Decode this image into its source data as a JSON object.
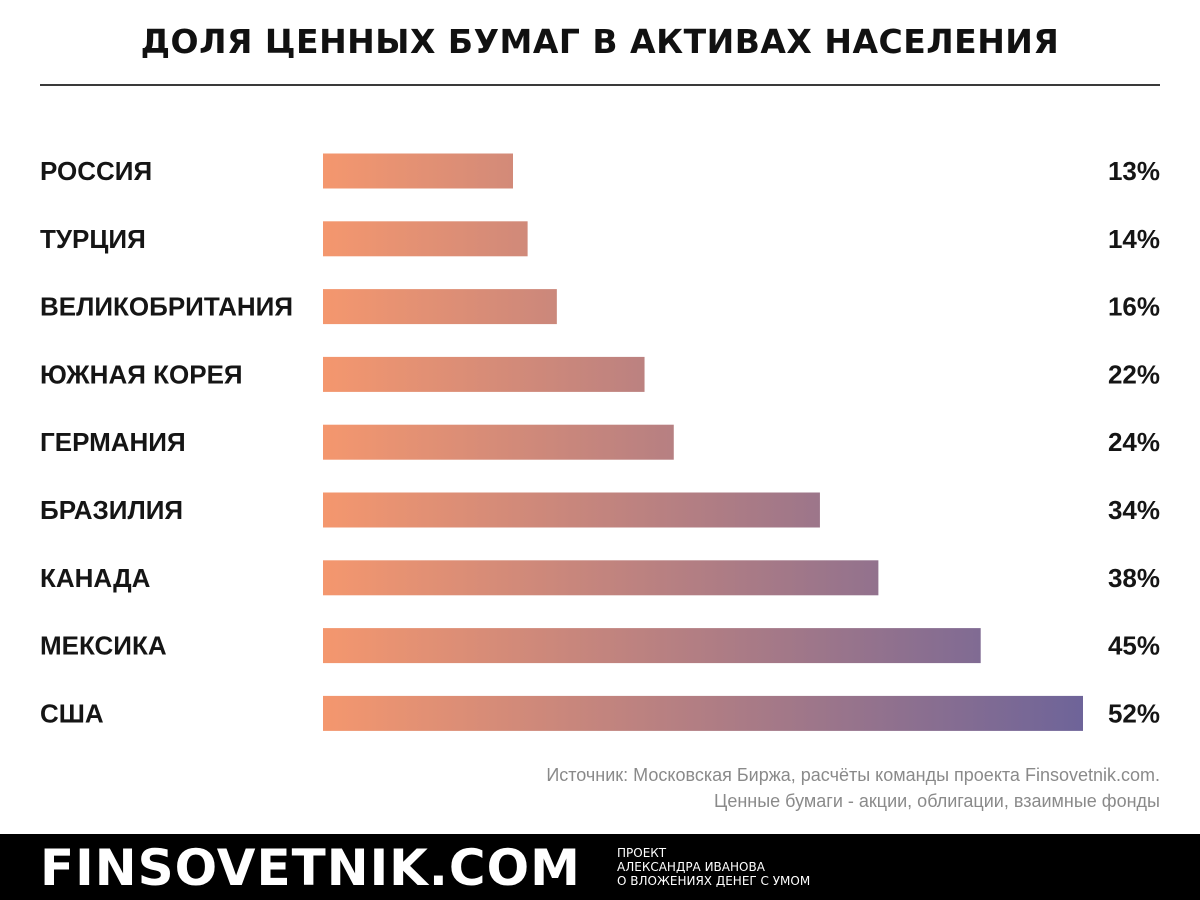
{
  "title": "ДОЛЯ ЦЕННЫХ БУМАГ В АКТИВАХ НАСЕЛЕНИЯ",
  "colors": {
    "bar_start": "#F4976E",
    "bar_end": "#6E6499",
    "text": "#151515",
    "source_text": "#8A8A8A",
    "footer_bg": "#000000"
  },
  "chart_data": {
    "type": "bar",
    "orientation": "horizontal",
    "title": "ДОЛЯ ЦЕННЫХ БУМАГ В АКТИВАХ НАСЕЛЕНИЯ",
    "categories": [
      "РОССИЯ",
      "ТУРЦИЯ",
      "ВЕЛИКОБРИТАНИЯ",
      "ЮЖНАЯ КОРЕЯ",
      "ГЕРМАНИЯ",
      "БРАЗИЛИЯ",
      "КАНАДА",
      "МЕКСИКА",
      "США"
    ],
    "values": [
      13,
      14,
      16,
      22,
      24,
      34,
      38,
      45,
      52
    ],
    "value_labels": [
      "13%",
      "14%",
      "16%",
      "22%",
      "24%",
      "34%",
      "38%",
      "45%",
      "52%"
    ],
    "unit": "%",
    "xlabel": "",
    "ylabel": "",
    "xlim": [
      0,
      52
    ],
    "grid": false,
    "legend": "none"
  },
  "source": {
    "line1": "Источник: Московская Биржа, расчёты команды проекта Finsovetnik.com.",
    "line2": "Ценные бумаги - акции, облигации, взаимные фонды"
  },
  "footer": {
    "brand": "FINSOVETNIK.COM",
    "tagline": [
      "ПРОЕКТ",
      "АЛЕКСАНДРА ИВАНОВА",
      "О ВЛОЖЕНИЯХ ДЕНЕГ С УМОМ"
    ]
  }
}
